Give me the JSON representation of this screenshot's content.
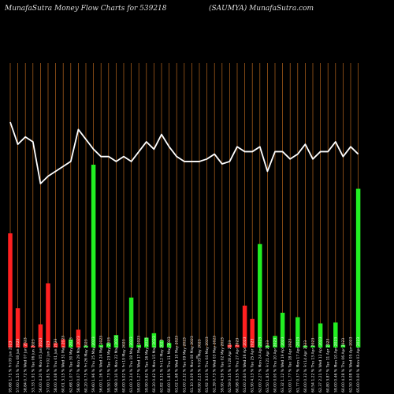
{
  "header": {
    "title_left": "MunafaSutra  Money Flow  Charts for 539218",
    "title_right": "(SAUMYA) MunafaSutra.com"
  },
  "chart_data": {
    "type": "bar",
    "title": "MunafaSutra  Money Flow  Charts for 539218",
    "subtitle": "(SAUMYA) MunafaSutra.com",
    "center_label": "0",
    "categories": [
      "Fri 09 Jun 2023",
      "Thu 08 Jun 2023",
      "Wed 07 Jun 2023",
      "Tue 06 Jun 2023",
      "Mon 05 Jun 2023",
      "Fri 02 Jun 2023",
      "Thu 01 Jun 2023",
      "Wed 31 May 2023",
      "Tue 30 May 2023",
      "Mon 29 May 2023",
      "Fri 26 May 2023",
      "Thu 25 May 2023",
      "Wed 24 May 2023",
      "Tue 23 May 2023",
      "Mon 22 May 2023",
      "Fri 19 May 2023",
      "Thu 18 May 2023",
      "Wed 17 May 2023",
      "Tue 16 May 2023",
      "Mon 15 May 2023",
      "Fri 12 May 2023",
      "Thu 11 May 2023",
      "Wed 10 May 2023",
      "Tue 09 May 2023",
      "Mon 08 May 2023",
      "Fri 05 May 2023",
      "Thu 04 May 2023",
      "Wed 03 May 2023",
      "Tue 02 May 2023",
      "Fri 28 Apr 2023",
      "Thu 27 Apr 2023",
      "Wed 26 Apr 2023",
      "Tue 25 Apr 2023",
      "Mon 24 Apr 2023",
      "Fri 21 Apr 2023",
      "Thu 20 Apr 2023",
      "Wed 19 Apr 2023",
      "Tue 18 Apr 2023",
      "Mon 17 Apr 2023",
      "Fri 14 Apr 2023",
      "Thu 13 Apr 2023",
      "Wed 12 Apr 2023",
      "Tue 11 Apr 2023",
      "Mon 10 Apr 2023",
      "Thu 06 Apr 2023",
      "Wed 05 Apr 2023",
      "Mon 03 Apr 2023"
    ],
    "x_tick_labels": [
      "95.68 1.71 %",
      "57.00 1.55 %",
      "58.84 0.72 %",
      "53.33 1.91 %",
      "56.00 4.20 %",
      "57.00 1.81 %",
      "58.00 3.08 %",
      "60.01 3.15 %",
      "62.68 1.07 %",
      "58.90 0.07 %",
      "60.20 0.75 %",
      "59.60 1.96 %",
      "56.00 1.16 %",
      "59.50 1.73 %",
      "58.98 0.10 %",
      "60.00 5.02 %",
      "61.00 3.24 %",
      "59.00 1.27 %",
      "59.90 0.62 %",
      "60.20 0.42 %",
      "62.82 3.31 %",
      "60.00 1.85 %",
      "61.02 1.68 %",
      "61.00 2.32 %",
      "61.10 3.09 %",
      "60.90 2.25 %",
      "61.92 3.03 %",
      "62.39 0.73 %",
      "59.90 4.59 %",
      "62.59 0.35 %",
      "60.98 0.55 %",
      "61.00 2.63 %",
      "61.90 4.13 %",
      "62.00 2.27 %",
      "63.50 1.85 %",
      "60.00 0.00 %",
      "63.32 1.12 %",
      "61.00 1.77 %",
      "61.77 0.37 %",
      "60.00 0.32 %",
      "60.54 1.22 %",
      "62.37 2.21 %",
      "60.80 3.87 %",
      "59.00 0.46 %",
      "60.00 4.28 %",
      "62.50 3.08 %",
      "65.00 0.00 %"
    ],
    "series": [
      {
        "color": "#ff2020",
        "values": [
          128,
          44,
          5,
          2,
          26,
          72,
          5,
          9,
          0,
          20,
          0,
          0,
          0,
          0,
          0,
          0,
          0,
          0,
          0,
          0,
          0,
          0,
          0,
          0,
          0,
          0,
          0,
          0,
          0,
          3,
          3,
          47,
          32,
          0,
          0,
          0,
          0,
          0,
          0,
          0,
          0,
          0,
          0,
          0,
          0,
          0,
          0
        ]
      },
      {
        "color": "#22ee22",
        "values": [
          0,
          0,
          0,
          0,
          0,
          0,
          0,
          0,
          9,
          0,
          2,
          205,
          3,
          5,
          14,
          0,
          56,
          3,
          11,
          16,
          8,
          5,
          0,
          0,
          0,
          0,
          0,
          0,
          0,
          0,
          0,
          0,
          0,
          116,
          2,
          13,
          39,
          0,
          34,
          2,
          2,
          27,
          3,
          28,
          3,
          0,
          178
        ]
      },
      {
        "color": "#ffffff",
        "values": [
          60,
          51,
          54,
          52,
          35,
          38,
          40,
          42,
          44,
          57,
          53,
          49,
          46,
          46,
          44,
          46,
          44,
          48,
          52,
          49,
          55,
          50,
          46,
          44,
          44,
          44,
          45,
          47,
          43,
          44,
          50,
          48,
          48,
          50,
          40,
          48,
          48,
          45,
          47,
          51,
          45,
          48,
          48,
          52,
          46,
          50,
          47
        ]
      }
    ],
    "grid": true,
    "legend": "none"
  }
}
